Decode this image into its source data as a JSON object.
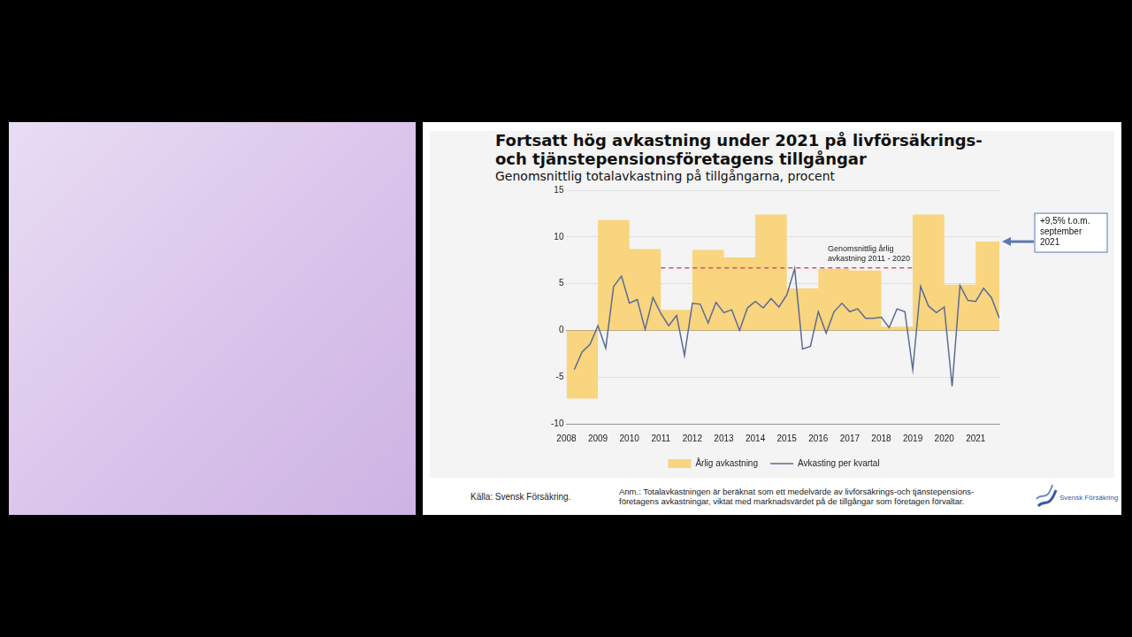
{
  "chart_data": {
    "type": "bar",
    "title": [
      "Fortsatt hög avkastning under 2021 på livförsäkrings-",
      "och tjänstepensionsföretagens tillgångar"
    ],
    "subtitle": "Genomsnittlig totalavkastning på tillgångarna, procent",
    "xlim": [
      2008,
      2021.75
    ],
    "xticks": [
      2008,
      2009,
      2010,
      2011,
      2012,
      2013,
      2014,
      2015,
      2016,
      2017,
      2018,
      2019,
      2020,
      2021
    ],
    "ylim": [
      -10,
      15
    ],
    "yticks": [
      -10,
      -5,
      0,
      5,
      10,
      15
    ],
    "grid": true,
    "legend": "bottom",
    "series": [
      {
        "name": "Årlig avkastning",
        "type": "bar",
        "color": "#f8d57e",
        "x": [
          2008,
          2009,
          2010,
          2011,
          2012,
          2013,
          2014,
          2015,
          2016,
          2017,
          2018,
          2019,
          2020,
          2021
        ],
        "values": [
          -7.3,
          11.8,
          8.7,
          2.2,
          8.6,
          7.8,
          12.4,
          4.5,
          6.6,
          6.4,
          0.4,
          12.4,
          4.9,
          9.5
        ]
      },
      {
        "name": "Avkasting per kvartal",
        "type": "line",
        "color": "#5b6b95",
        "x": [
          2008.25,
          2008.5,
          2008.75,
          2009,
          2009.25,
          2009.5,
          2009.75,
          2010,
          2010.25,
          2010.5,
          2010.75,
          2011,
          2011.25,
          2011.5,
          2011.75,
          2012,
          2012.25,
          2012.5,
          2012.75,
          2013,
          2013.25,
          2013.5,
          2013.75,
          2014,
          2014.25,
          2014.5,
          2014.75,
          2015,
          2015.25,
          2015.5,
          2015.75,
          2016,
          2016.25,
          2016.5,
          2016.75,
          2017,
          2017.25,
          2017.5,
          2017.75,
          2018,
          2018.25,
          2018.5,
          2018.75,
          2019,
          2019.25,
          2019.5,
          2019.75,
          2020,
          2020.25,
          2020.5,
          2020.75,
          2021,
          2021.25,
          2021.5,
          2021.75
        ],
        "values": [
          -4.2,
          -2.3,
          -1.5,
          0.5,
          -1.9,
          4.7,
          5.8,
          2.9,
          3.3,
          0.1,
          3.5,
          1.8,
          0.5,
          1.6,
          -2.7,
          2.9,
          2.8,
          0.8,
          3.0,
          1.9,
          2.2,
          0.0,
          2.4,
          3.1,
          2.4,
          3.4,
          2.5,
          3.8,
          6.6,
          -2.0,
          -1.7,
          2.0,
          -0.3,
          2.0,
          2.9,
          2.0,
          2.3,
          1.3,
          1.3,
          1.4,
          0.3,
          2.3,
          2.0,
          -4.2,
          4.7,
          2.6,
          1.9,
          2.5,
          -6.0,
          4.8,
          3.2,
          3.1,
          4.5,
          3.5,
          1.3
        ]
      }
    ],
    "annotations": [
      {
        "text": "Genomsnittlig årlig avkastning 2011 - 2020",
        "x": [
          2011,
          2019
        ],
        "y": 6.7,
        "color": "#d9536b",
        "line_style": "dashed"
      },
      {
        "text": "+9,5% t.o.m. september 2021",
        "x": 2021.75,
        "y": 9.5,
        "color": "#5b78b0"
      }
    ],
    "source": "Källa: Svensk Försäkring.",
    "note": [
      "Anm.: Totalavkastningen är beräknat som ett medelvärde av livförsäkrings-och tjänstepensions-",
      "företagens avkastningar, viktat med marknadsvärdet på de tillgångar som företagen förvaltar."
    ],
    "logo_text": "Svensk Försäkring"
  }
}
